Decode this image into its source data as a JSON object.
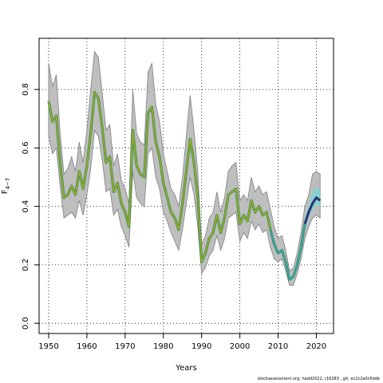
{
  "chart_data": {
    "type": "line",
    "xlabel": "Years",
    "ylabel_main": "F",
    "ylabel_sub": "4-7",
    "xlim": [
      1947.5,
      2024.5
    ],
    "ylim": [
      -0.035,
      0.975
    ],
    "xticks": [
      1950,
      1960,
      1970,
      1980,
      1990,
      2000,
      2010,
      2020
    ],
    "yticks": [
      0.0,
      0.2,
      0.4,
      0.6,
      0.8
    ],
    "ytick_labels": [
      "0.0",
      "0.2",
      "0.4",
      "0.6",
      "0.8"
    ],
    "grid": true,
    "x": [
      1950,
      1951,
      1952,
      1953,
      1954,
      1955,
      1956,
      1957,
      1958,
      1959,
      1960,
      1961,
      1962,
      1963,
      1964,
      1965,
      1966,
      1967,
      1968,
      1969,
      1970,
      1971,
      1972,
      1973,
      1974,
      1975,
      1976,
      1977,
      1978,
      1979,
      1980,
      1981,
      1982,
      1983,
      1984,
      1985,
      1986,
      1987,
      1988,
      1989,
      1990,
      1991,
      1992,
      1993,
      1994,
      1995,
      1996,
      1997,
      1998,
      1999,
      2000,
      2001,
      2002,
      2003,
      2004,
      2005,
      2006,
      2007,
      2008,
      2009,
      2010,
      2011,
      2012,
      2013,
      2014,
      2015,
      2016,
      2017,
      2018,
      2019,
      2020,
      2021
    ],
    "series": [
      {
        "values": [
          0.76,
          0.69,
          0.71,
          0.55,
          0.43,
          0.44,
          0.47,
          0.44,
          0.52,
          0.46,
          0.54,
          0.65,
          0.79,
          0.77,
          0.67,
          0.55,
          0.57,
          0.45,
          0.48,
          0.41,
          0.38,
          0.33,
          0.66,
          0.54,
          0.51,
          0.5,
          0.72,
          0.74,
          0.62,
          0.57,
          0.48,
          0.43,
          0.38,
          0.36,
          0.32,
          0.41,
          0.52,
          0.63,
          0.55,
          0.43,
          0.21,
          0.24,
          0.29,
          0.31,
          0.37,
          0.31,
          0.36,
          0.44,
          0.45,
          0.46,
          0.34,
          0.37,
          0.35,
          0.42,
          0.38,
          0.4,
          0.37,
          0.38,
          0.32,
          0.27,
          0.24,
          0.25,
          0.21,
          0.15,
          0.16,
          0.2,
          0.26,
          0.34,
          0.38,
          0.41,
          0.43,
          0.42
        ],
        "lower": [
          0.64,
          0.58,
          0.6,
          0.47,
          0.36,
          0.37,
          0.38,
          0.36,
          0.42,
          0.37,
          0.44,
          0.53,
          0.66,
          0.64,
          0.56,
          0.45,
          0.46,
          0.37,
          0.39,
          0.33,
          0.3,
          0.26,
          0.52,
          0.43,
          0.41,
          0.4,
          0.58,
          0.6,
          0.5,
          0.46,
          0.38,
          0.35,
          0.31,
          0.28,
          0.25,
          0.32,
          0.41,
          0.5,
          0.44,
          0.33,
          0.17,
          0.19,
          0.23,
          0.25,
          0.3,
          0.25,
          0.29,
          0.36,
          0.37,
          0.38,
          0.28,
          0.31,
          0.29,
          0.35,
          0.32,
          0.34,
          0.31,
          0.32,
          0.26,
          0.22,
          0.21,
          0.22,
          0.18,
          0.13,
          0.13,
          0.17,
          0.22,
          0.29,
          0.33,
          0.36,
          0.37,
          0.36
        ],
        "upper": [
          0.89,
          0.81,
          0.85,
          0.65,
          0.51,
          0.53,
          0.57,
          0.52,
          0.62,
          0.55,
          0.66,
          0.8,
          0.93,
          0.91,
          0.79,
          0.66,
          0.68,
          0.54,
          0.58,
          0.49,
          0.46,
          0.41,
          0.8,
          0.65,
          0.62,
          0.61,
          0.86,
          0.89,
          0.75,
          0.69,
          0.58,
          0.52,
          0.46,
          0.44,
          0.4,
          0.5,
          0.64,
          0.78,
          0.66,
          0.52,
          0.27,
          0.3,
          0.36,
          0.38,
          0.45,
          0.38,
          0.43,
          0.52,
          0.54,
          0.55,
          0.42,
          0.44,
          0.42,
          0.5,
          0.45,
          0.47,
          0.44,
          0.45,
          0.39,
          0.33,
          0.29,
          0.3,
          0.25,
          0.18,
          0.19,
          0.24,
          0.31,
          0.4,
          0.44,
          0.51,
          0.52,
          0.51
        ]
      }
    ]
  },
  "footer_text": "stockassessment.org, hadd2022, r16283 ,  git: ec2c2a0c6dde"
}
